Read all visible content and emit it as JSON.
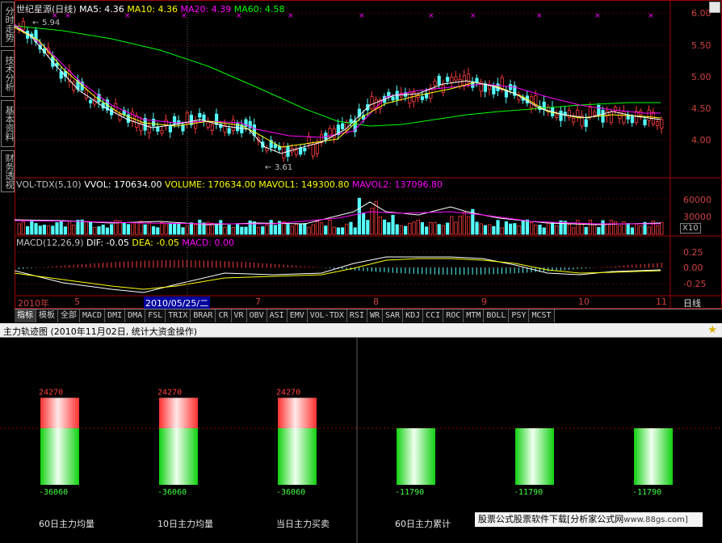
{
  "side_tabs": [
    "分时走势",
    "技术分析",
    "基本资料",
    "财务透视"
  ],
  "kline": {
    "stock_name": "世纪星源(日线)",
    "ma5_label": "MA5: 4.36",
    "ma10_label": "MA10: 4.36",
    "ma20_label": "MA20: 4.39",
    "ma60_label": "MA60: 4.58",
    "high_annot": "5.94",
    "low_annot": "3.61",
    "price_ticks": [
      "6.00",
      "5.50",
      "5.00",
      "4.50",
      "4.00"
    ],
    "colors": {
      "ma5": "#ffffff",
      "ma10": "#ffff00",
      "ma20": "#ff00ff",
      "ma60": "#00ff00",
      "up": "#ff3c3c",
      "down": "#54ffff"
    }
  },
  "volume": {
    "name_label": "VOL-TDX(5,10)",
    "vvol_label": "VVOL: 170634.00",
    "volume_label": "VOLUME: 170634.00",
    "mavol1_label": "MAVOL1: 149300.80",
    "mavol2_label": "MAVOL2: 137096.80",
    "ticks": [
      "60000",
      "30000"
    ],
    "unit": "X10"
  },
  "macd": {
    "name_label": "MACD(12,26,9)",
    "dif_label": "DIF: -0.05",
    "dea_label": "DEA: -0.05",
    "macd_label": "MACD: 0.00",
    "ticks": [
      "0.25",
      "0.00",
      "-0.25"
    ]
  },
  "time_axis": {
    "year_label": "2010年",
    "cursor_date": "2010/05/25/二",
    "months": [
      "5",
      "7",
      "8",
      "9",
      "10",
      "11"
    ],
    "period_label": "日线"
  },
  "indicator_tabs": [
    "指标",
    "模板",
    "全部",
    "MACD",
    "DMI",
    "DMA",
    "FSL",
    "TRIX",
    "BRAR",
    "CR",
    "VR",
    "OBV",
    "ASI",
    "EMV",
    "VOL-TDX",
    "RSI",
    "WR",
    "SAR",
    "KDJ",
    "CCI",
    "ROC",
    "MTM",
    "BOLL",
    "PSY",
    "MCST"
  ],
  "panel": {
    "title": "主力轨迹图 (2010年11月02日, 统计大资金操作)",
    "bars": [
      {
        "label": "60日主力均量",
        "top_value": "24270",
        "bottom_value": "-36060",
        "pos": 24270,
        "neg": 36060
      },
      {
        "label": "10日主力均量",
        "top_value": "24270",
        "bottom_value": "-36060",
        "pos": 24270,
        "neg": 36060
      },
      {
        "label": "当日主力买卖",
        "top_value": "24270",
        "bottom_value": "-36060",
        "pos": 24270,
        "neg": 36060
      },
      {
        "label": "60日主力累计",
        "top_value": "",
        "bottom_value": "-11790",
        "pos": 0,
        "neg": 11790
      },
      {
        "label": "",
        "top_value": "",
        "bottom_value": "-11790",
        "pos": 0,
        "neg": 11790
      },
      {
        "label": "",
        "top_value": "",
        "bottom_value": "-11790",
        "pos": 0,
        "neg": 11790
      }
    ],
    "watermark_text": "股票公式股票软件下载[分析家公式网",
    "watermark_url": "www.88gs.com]"
  }
}
